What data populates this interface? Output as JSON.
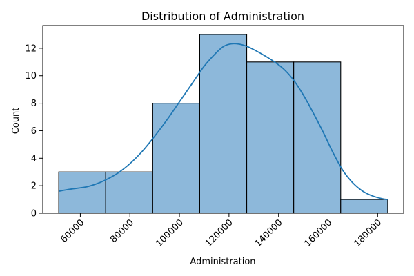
{
  "chart_data": {
    "type": "bar",
    "subtype": "histogram_with_kde",
    "title": "Distribution of Administration",
    "xlabel": "Administration",
    "ylabel": "Count",
    "bins": [
      {
        "start": 51283,
        "end": 70250,
        "count": 3
      },
      {
        "start": 70250,
        "end": 89218,
        "count": 3
      },
      {
        "start": 89218,
        "end": 108185,
        "count": 8
      },
      {
        "start": 108185,
        "end": 127152,
        "count": 13
      },
      {
        "start": 127152,
        "end": 146120,
        "count": 11
      },
      {
        "start": 146120,
        "end": 165087,
        "count": 11
      },
      {
        "start": 165087,
        "end": 184054,
        "count": 1
      }
    ],
    "kde": {
      "x": [
        51283,
        56000,
        62000,
        66000,
        70000,
        75000,
        80000,
        85000,
        90000,
        95000,
        100000,
        105000,
        110000,
        115000,
        118000,
        121000,
        124000,
        127000,
        130000,
        134000,
        138000,
        142000,
        146000,
        150000,
        154000,
        158000,
        162000,
        166000,
        170000,
        174000,
        178000,
        182000,
        184054
      ],
      "y": [
        1.6,
        1.75,
        1.9,
        2.1,
        2.4,
        2.9,
        3.6,
        4.5,
        5.6,
        6.8,
        8.1,
        9.4,
        10.7,
        11.7,
        12.15,
        12.32,
        12.3,
        12.15,
        11.9,
        11.5,
        11.05,
        10.5,
        9.7,
        8.6,
        7.3,
        5.9,
        4.4,
        3.1,
        2.2,
        1.6,
        1.25,
        1.05,
        1.0
      ]
    },
    "xticks": [
      60000,
      80000,
      100000,
      120000,
      140000,
      160000,
      180000
    ],
    "yticks": [
      0,
      2,
      4,
      6,
      8,
      10,
      12
    ],
    "xlim": [
      44845,
      190492
    ],
    "ylim": [
      0,
      13.65
    ],
    "grid": false,
    "colors": {
      "bar_fill": "#8db8da",
      "bar_edge": "#000000",
      "kde_line": "#1f77b4"
    }
  }
}
